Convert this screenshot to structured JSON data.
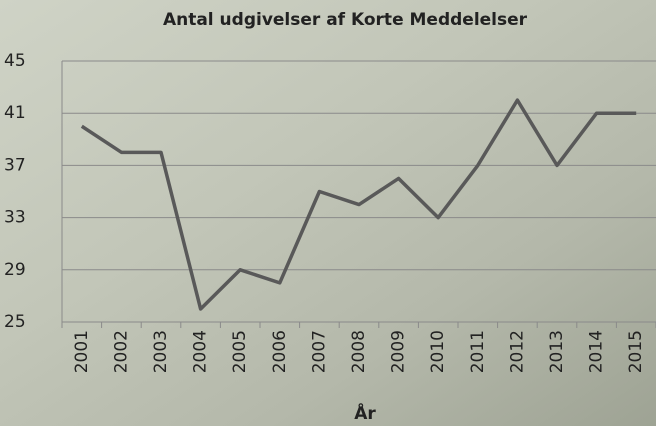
{
  "chart_data": {
    "type": "line",
    "title": "Antal udgivelser af Korte Meddelelser",
    "x_label": "År",
    "categories": [
      "2001",
      "2002",
      "2003",
      "2004",
      "2005",
      "2006",
      "2007",
      "2008",
      "2009",
      "2010",
      "2011",
      "2012",
      "2013",
      "2014",
      "2015"
    ],
    "values": [
      40,
      38,
      38,
      26,
      29,
      28,
      35,
      34,
      36,
      33,
      37,
      42,
      37,
      41,
      41
    ],
    "color": "#595959",
    "ylim": [
      25,
      45
    ],
    "yticks": [
      25,
      29,
      33,
      37,
      41,
      45
    ],
    "grid": true
  }
}
